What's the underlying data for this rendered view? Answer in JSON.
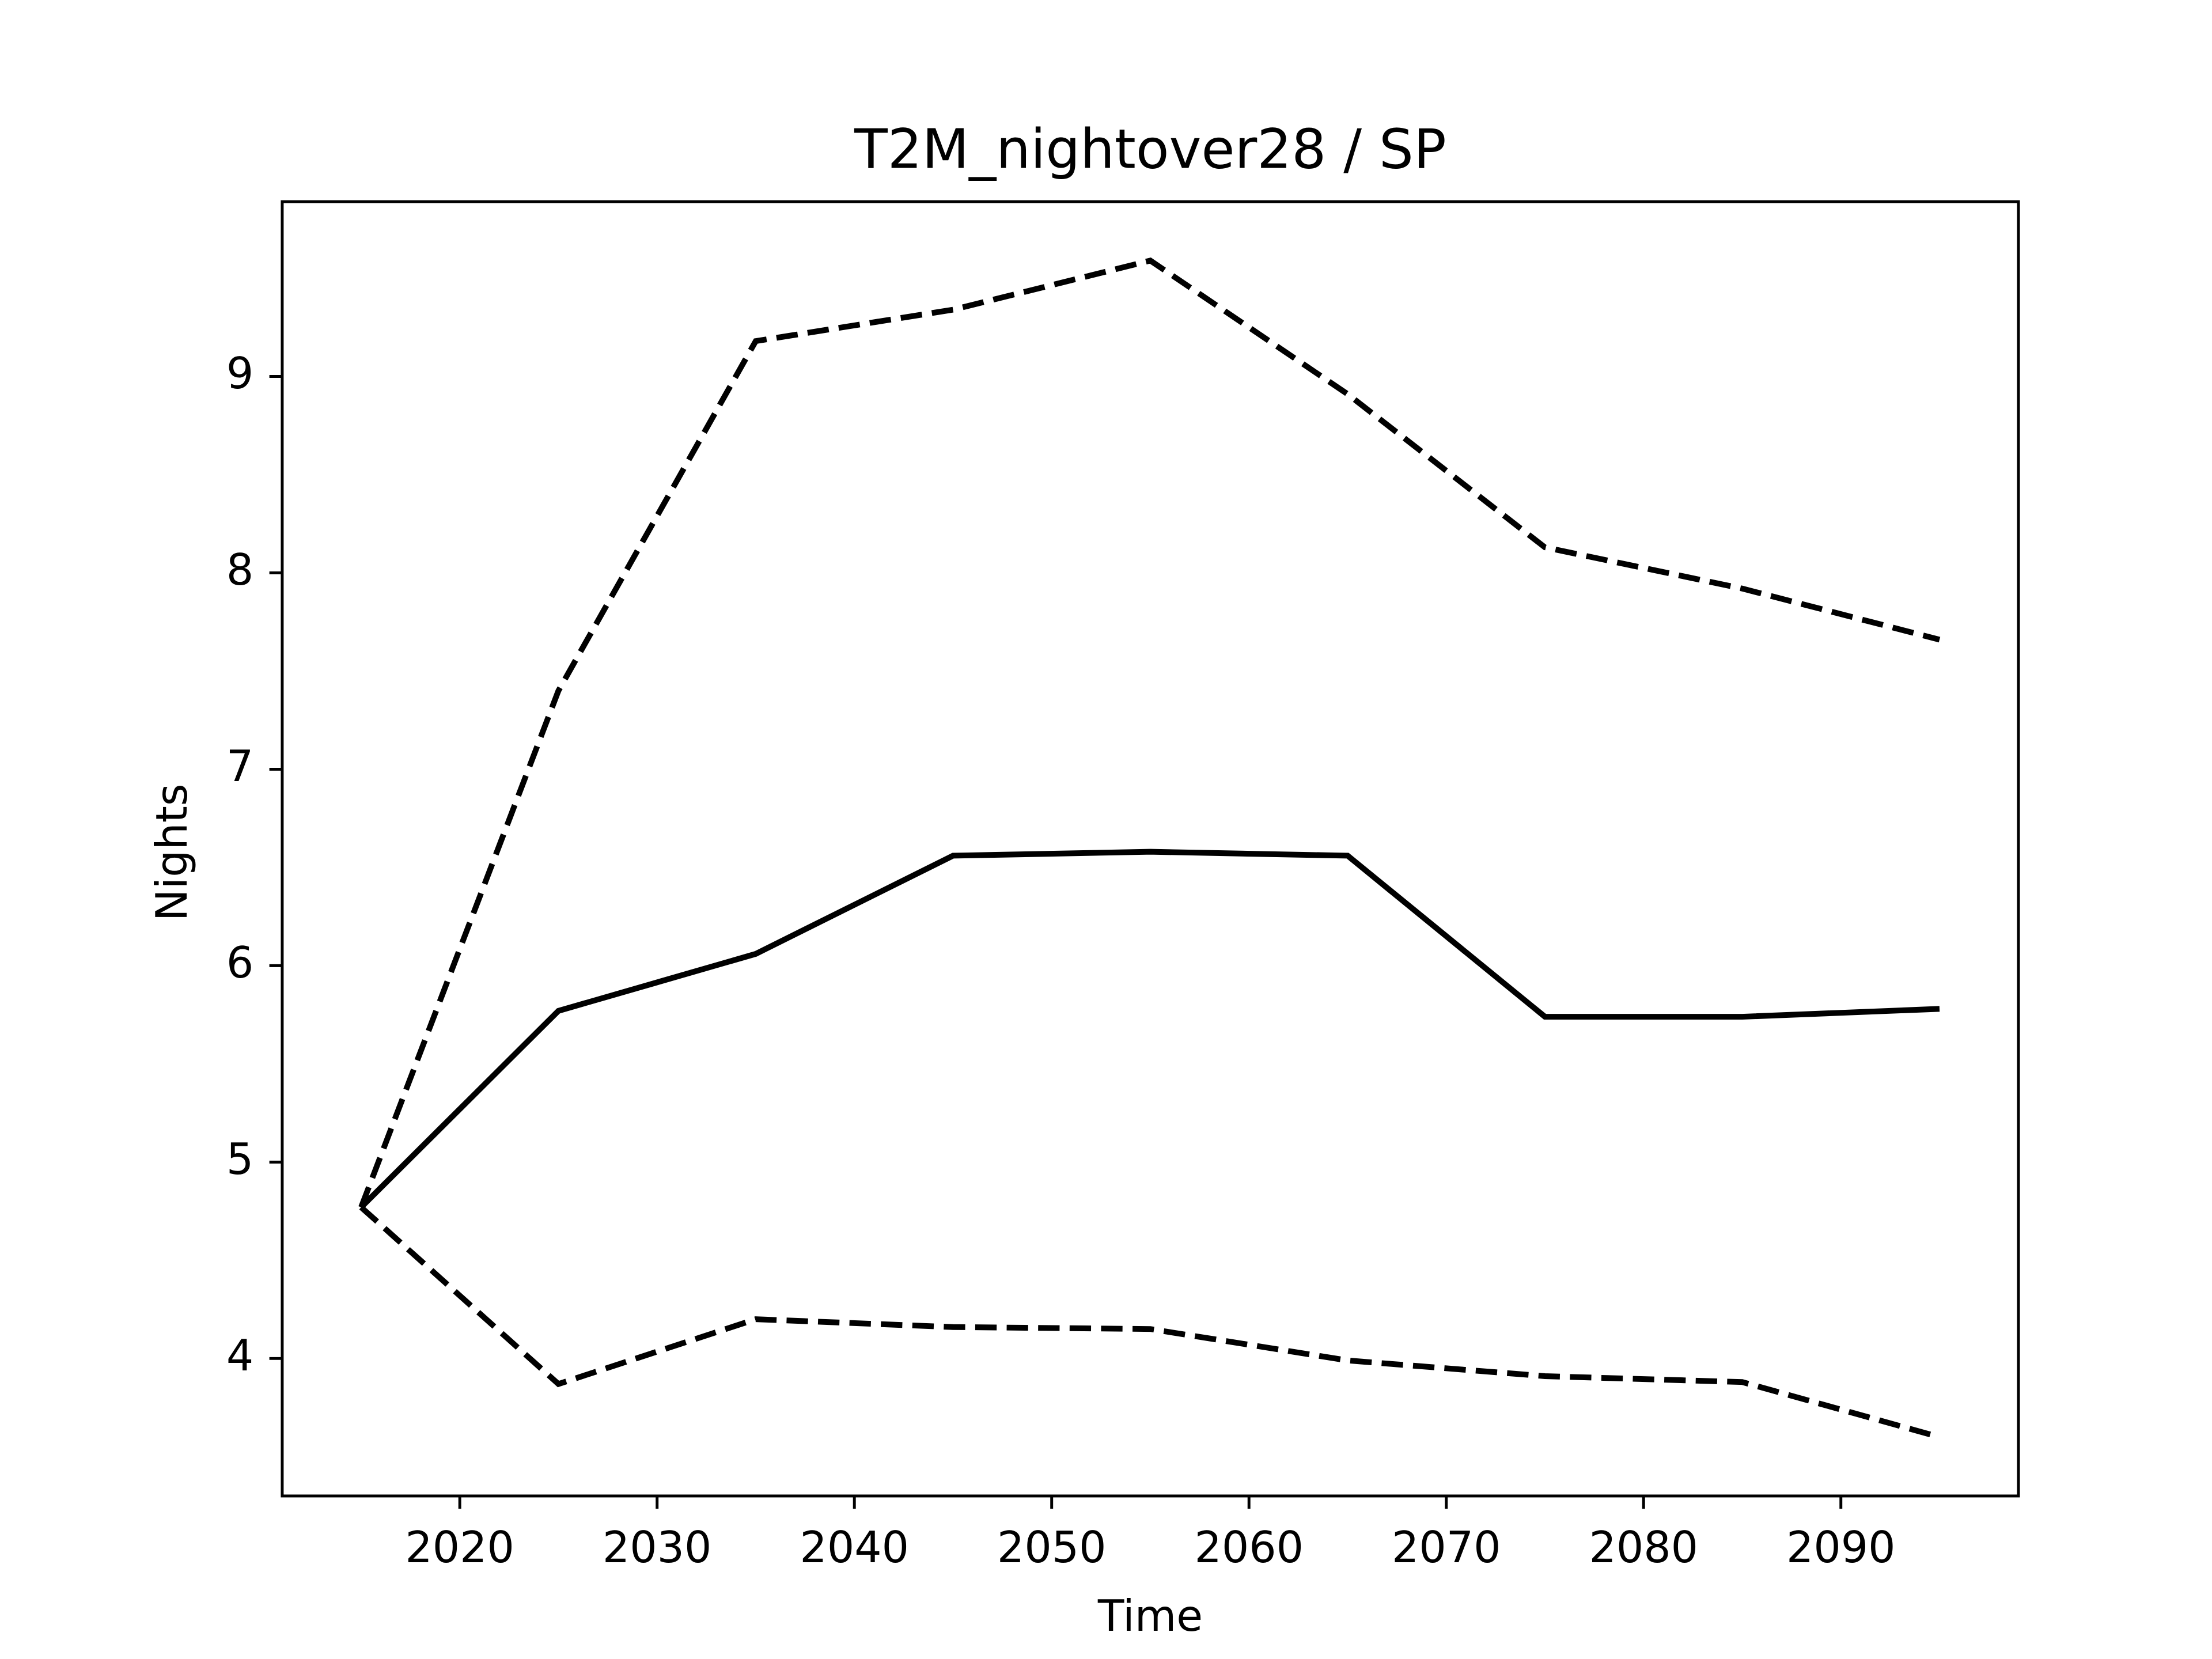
{
  "chart_data": {
    "type": "line",
    "title": "T2M_nightover28 / SP",
    "x_label": "Time",
    "y_label": "Nights",
    "x": [
      2015,
      2025,
      2035,
      2045,
      2055,
      2065,
      2075,
      2085,
      2095
    ],
    "series": [
      {
        "color": "#000000",
        "linestyle": "solid",
        "values": [
          4.77,
          5.77,
          6.06,
          6.56,
          6.58,
          6.56,
          5.74,
          5.74,
          5.78
        ]
      },
      {
        "color": "#000000",
        "linestyle": "dashed",
        "values": [
          4.77,
          7.4,
          9.18,
          9.34,
          9.59,
          8.91,
          8.13,
          7.92,
          7.66
        ]
      },
      {
        "color": "#000000",
        "linestyle": "dashed",
        "values": [
          4.77,
          3.87,
          4.2,
          4.16,
          4.15,
          3.99,
          3.91,
          3.88,
          3.6
        ]
      }
    ],
    "xlim": [
      2011,
      2099
    ],
    "ylim": [
      3.3,
      9.89
    ],
    "xticks": [
      2020,
      2030,
      2040,
      2050,
      2060,
      2070,
      2080,
      2090
    ],
    "yticks": [
      4,
      5,
      6,
      7,
      8,
      9
    ],
    "grid": false
  }
}
